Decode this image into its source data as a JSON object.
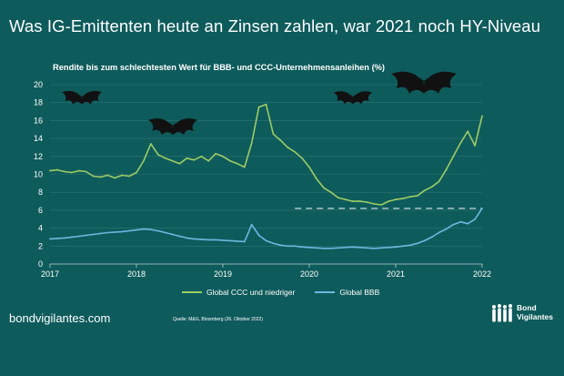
{
  "headline": "Was IG-Emittenten heute an Zinsen zahlen, war 2021 noch HY-Niveau",
  "footer": {
    "url": "bondvigilantes.com",
    "source": "Quelle: M&G, Bloomberg (26. Oktober 2022)",
    "logo_line1": "Bond",
    "logo_line2": "Vigilantes"
  },
  "colors": {
    "background": "#0e5b5c",
    "ccc": "#9ccc65",
    "bbb": "#6cb8e0",
    "grid": "#2f7575",
    "reference_line": "#dfe8e8"
  },
  "icons": [
    "bat-icon",
    "bat-icon",
    "bat-icon",
    "bat-icon",
    "people-logo-icon"
  ],
  "chart_data": {
    "type": "line",
    "title": "Rendite bis zum schlechtesten Wert für BBB- und CCC-Unternehmensanleihen (%)",
    "x_ticks": [
      "2017",
      "2018",
      "2019",
      "2020",
      "2021",
      "2022"
    ],
    "y_ticks": [
      "0",
      "2",
      "4",
      "6",
      "8",
      "10",
      "12",
      "14",
      "16",
      "18",
      "20"
    ],
    "ylim": [
      0,
      20
    ],
    "xlim": [
      "2017-01",
      "2022-01"
    ],
    "grid": "horizontal",
    "legend_position": "bottom",
    "reference_line": {
      "value": 6.2,
      "from": "2019-11",
      "to": "2022-01",
      "style": "dashed"
    },
    "series": [
      {
        "name": "Global CCC und niedriger",
        "x": [
          "2017-01",
          "2017-02",
          "2017-03",
          "2017-04",
          "2017-05",
          "2017-06",
          "2017-07",
          "2017-08",
          "2017-09",
          "2017-10",
          "2017-11",
          "2017-12",
          "2018-01",
          "2018-02",
          "2018-03",
          "2018-04",
          "2018-05",
          "2018-06",
          "2018-07",
          "2018-08",
          "2018-09",
          "2018-10",
          "2018-11",
          "2018-12",
          "2019-01",
          "2019-02",
          "2019-03",
          "2019-04",
          "2019-05",
          "2019-06",
          "2019-07",
          "2019-08",
          "2019-09",
          "2019-10",
          "2019-11",
          "2019-12",
          "2020-01",
          "2020-02",
          "2020-03",
          "2020-04",
          "2020-05",
          "2020-06",
          "2020-07",
          "2020-08",
          "2020-09",
          "2020-10",
          "2020-11",
          "2020-12",
          "2021-01",
          "2021-02",
          "2021-03",
          "2021-04",
          "2021-05",
          "2021-06",
          "2021-07",
          "2021-08",
          "2021-09",
          "2021-10",
          "2021-11",
          "2021-12",
          "2022-01"
        ],
        "values": [
          10.4,
          10.5,
          10.3,
          10.2,
          10.4,
          10.3,
          9.8,
          9.7,
          9.9,
          9.6,
          9.9,
          9.8,
          10.2,
          11.5,
          13.4,
          12.2,
          11.8,
          11.5,
          11.2,
          11.8,
          11.6,
          12.0,
          11.5,
          12.3,
          12.0,
          11.5,
          11.2,
          10.8,
          13.5,
          17.5,
          17.8,
          14.5,
          13.8,
          13.0,
          12.5,
          11.8,
          10.8,
          9.5,
          8.5,
          8.0,
          7.4,
          7.2,
          7.0,
          7.0,
          6.9,
          6.7,
          6.6,
          7.0,
          7.2,
          7.3,
          7.5,
          7.6,
          8.2,
          8.6,
          9.2,
          10.5,
          12.0,
          13.5,
          14.8,
          13.2,
          16.5
        ],
        "color": "#9ccc65"
      },
      {
        "name": "Global BBB",
        "x": [
          "2017-01",
          "2017-02",
          "2017-03",
          "2017-04",
          "2017-05",
          "2017-06",
          "2017-07",
          "2017-08",
          "2017-09",
          "2017-10",
          "2017-11",
          "2017-12",
          "2018-01",
          "2018-02",
          "2018-03",
          "2018-04",
          "2018-05",
          "2018-06",
          "2018-07",
          "2018-08",
          "2018-09",
          "2018-10",
          "2018-11",
          "2018-12",
          "2019-01",
          "2019-02",
          "2019-03",
          "2019-04",
          "2019-05",
          "2019-06",
          "2019-07",
          "2019-08",
          "2019-09",
          "2019-10",
          "2019-11",
          "2019-12",
          "2020-01",
          "2020-02",
          "2020-03",
          "2020-04",
          "2020-05",
          "2020-06",
          "2020-07",
          "2020-08",
          "2020-09",
          "2020-10",
          "2020-11",
          "2020-12",
          "2021-01",
          "2021-02",
          "2021-03",
          "2021-04",
          "2021-05",
          "2021-06",
          "2021-07",
          "2021-08",
          "2021-09",
          "2021-10",
          "2021-11",
          "2021-12",
          "2022-01"
        ],
        "values": [
          2.8,
          2.85,
          2.9,
          3.0,
          3.1,
          3.2,
          3.3,
          3.4,
          3.5,
          3.55,
          3.6,
          3.7,
          3.8,
          3.9,
          3.85,
          3.7,
          3.5,
          3.3,
          3.1,
          2.9,
          2.8,
          2.75,
          2.7,
          2.7,
          2.65,
          2.6,
          2.55,
          2.5,
          4.4,
          3.2,
          2.6,
          2.3,
          2.1,
          2.0,
          2.0,
          1.9,
          1.85,
          1.8,
          1.75,
          1.75,
          1.8,
          1.85,
          1.9,
          1.85,
          1.8,
          1.75,
          1.8,
          1.85,
          1.9,
          2.0,
          2.1,
          2.3,
          2.6,
          3.0,
          3.5,
          3.9,
          4.4,
          4.7,
          4.5,
          5.0,
          6.2
        ],
        "color": "#6cb8e0"
      }
    ]
  }
}
